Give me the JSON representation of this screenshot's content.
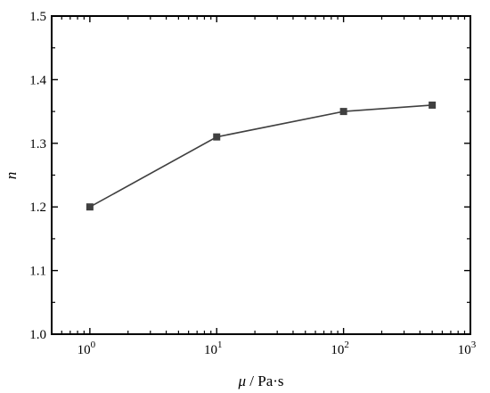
{
  "chart_data": {
    "type": "line",
    "title": "",
    "x_scale": "log",
    "xlim": [
      0.5,
      1000
    ],
    "ylim": [
      1.0,
      1.5
    ],
    "x": [
      1,
      10,
      100,
      500
    ],
    "series": [
      {
        "values": [
          1.2,
          1.31,
          1.35,
          1.36
        ],
        "color": "#404040",
        "marker": "square"
      }
    ],
    "xlabel_symbol": "μ",
    "xlabel_unit": " / Pa·s",
    "ylabel": "n",
    "y_ticks": [
      1.0,
      1.1,
      1.2,
      1.3,
      1.4,
      1.5
    ],
    "y_tick_labels": [
      "1.0",
      "1.1",
      "1.2",
      "1.3",
      "1.4",
      "1.5"
    ],
    "x_major_ticks": [
      1,
      10,
      100,
      1000
    ],
    "x_tick_base": "10",
    "x_tick_exponents": [
      "0",
      "1",
      "2",
      "3"
    ],
    "grid": false,
    "legend": "none"
  }
}
